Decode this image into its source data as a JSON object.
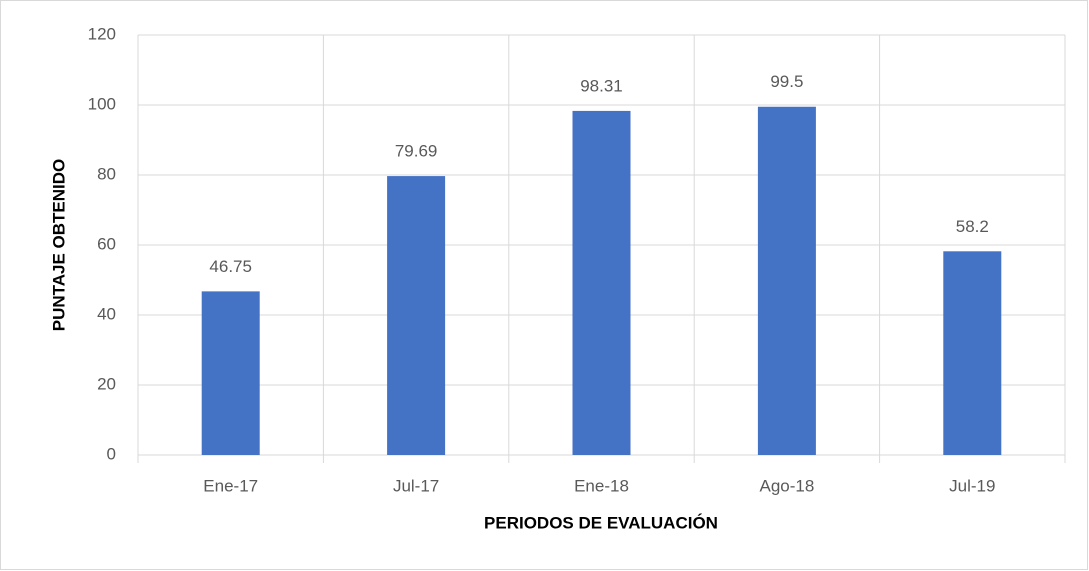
{
  "chart_data": {
    "type": "bar",
    "x_label": "PERIODOS DE EVALUACIÓN",
    "y_label": "PUNTAJE OBTENIDO",
    "categories": [
      "Ene-17",
      "Jul-17",
      "Ene-18",
      "Ago-18",
      "Jul-19"
    ],
    "values": [
      46.75,
      79.69,
      98.31,
      99.5,
      58.2
    ],
    "color": "#4472c4",
    "ylim": [
      0,
      120
    ],
    "yticks": [
      0,
      20,
      40,
      60,
      80,
      100,
      120
    ],
    "grid": true
  }
}
